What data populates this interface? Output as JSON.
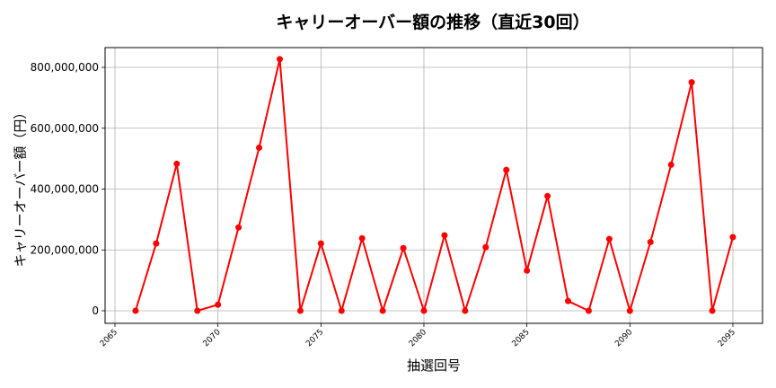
{
  "chart_data": {
    "type": "line",
    "title": "キャリーオーバー額の推移（直近30回）",
    "xlabel": "抽選回号",
    "ylabel": "キャリーオーバー額（円）",
    "x": [
      2066,
      2067,
      2068,
      2069,
      2070,
      2071,
      2072,
      2073,
      2074,
      2075,
      2076,
      2077,
      2078,
      2079,
      2080,
      2081,
      2082,
      2083,
      2084,
      2085,
      2086,
      2087,
      2088,
      2089,
      2090,
      2091,
      2092,
      2093,
      2094,
      2095
    ],
    "series": [
      {
        "name": "キャリーオーバー額",
        "color": "#ff0000",
        "marker": "circle",
        "values": [
          0,
          221000000,
          483000000,
          0,
          20000000,
          274000000,
          536000000,
          827000000,
          0,
          221000000,
          0,
          238000000,
          0,
          206000000,
          0,
          248000000,
          0,
          209000000,
          463000000,
          132000000,
          377000000,
          32000000,
          0,
          236000000,
          0,
          226000000,
          480000000,
          751000000,
          0,
          242000000
        ]
      }
    ],
    "xticks": [
      2065,
      2070,
      2075,
      2080,
      2085,
      2090,
      2095
    ],
    "xtick_labels": [
      "2065",
      "2070",
      "2075",
      "2080",
      "2085",
      "2090",
      "2095"
    ],
    "yticks": [
      0,
      200000000,
      400000000,
      600000000,
      800000000
    ],
    "ytick_labels": [
      "0",
      "200,000,000",
      "400,000,000",
      "600,000,000",
      "800,000,000"
    ],
    "xlim": [
      2064.52,
      2096.44
    ],
    "ylim": [
      -41300000,
      865000000
    ],
    "grid": true,
    "legend": null,
    "xtick_rotation": 45
  }
}
